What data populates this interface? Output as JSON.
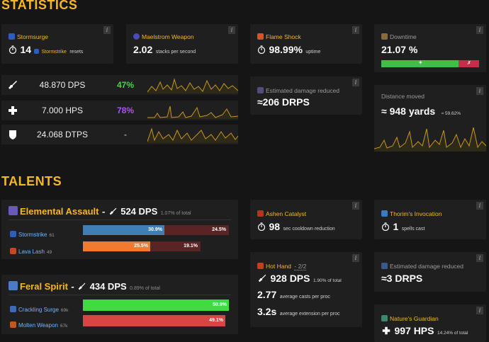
{
  "headings": {
    "statistics": "STATISTICS",
    "talents": "TALENTS"
  },
  "info_glyph": "i",
  "colors": {
    "accent": "#f5b722",
    "green": "#3fdc3f",
    "purple": "#a855f7",
    "blue_bar": "#3f7fb3",
    "orange_bar": "#f07b2e",
    "green_bar": "#3fdc3f",
    "red_bar": "#d94545",
    "dark_red": "#5a2424"
  },
  "cards": {
    "stormsurge": {
      "title": "Stormsurge",
      "icon": "stormsurge-icon",
      "value": "14",
      "link": "Stormstrike",
      "suffix": "resets"
    },
    "maelstrom": {
      "title": "Maelstrom Weapon",
      "icon": "maelstrom-icon",
      "value": "2.02",
      "suffix": "stacks per second"
    },
    "flameshock": {
      "title": "Flame Shock",
      "icon": "flame-shock-icon",
      "value": "98.99%",
      "suffix": "uptime"
    },
    "downtime": {
      "title": "Downtime",
      "icon": "downtime-icon",
      "value": "21.07 %",
      "active_fraction": 0.79
    },
    "dmg_reduced": {
      "title": "Estimated damage reduced",
      "value": "≈206 DRPS"
    },
    "distance": {
      "title": "Distance moved",
      "value": "≈ 948 yards",
      "suffix": "≈ 59.62%"
    }
  },
  "rows": [
    {
      "icon": "sword-icon",
      "value": "48.870 DPS",
      "pct": "47%",
      "pct_color": "#3fdc3f"
    },
    {
      "icon": "plus-icon",
      "value": "7.000 HPS",
      "pct": "78%",
      "pct_color": "#a855f7"
    },
    {
      "icon": "shield-icon",
      "value": "24.068 DTPS",
      "pct": "-",
      "pct_color": "#9a9a9a"
    }
  ],
  "talents": {
    "elemental_assault": {
      "name": "Elemental Assault",
      "sep": "-",
      "dps": "524 DPS",
      "share": "1.07% of total",
      "subs": [
        {
          "name": "Stormstrike",
          "num": "61",
          "left": "30.9%",
          "right": "24.5%",
          "left_frac": 0.56,
          "right_frac": 0.44
        },
        {
          "name": "Lava Lash",
          "num": "49",
          "left": "25.5%",
          "right": "19.1%",
          "left_frac": 0.57,
          "right_frac": 0.43
        }
      ]
    },
    "feral_spirit": {
      "name": "Feral Spirit",
      "sep": "-",
      "dps": "434 DPS",
      "share": "0.89% of total",
      "subs": [
        {
          "name": "Crackling Surge",
          "num": "69k",
          "label": "50.9%",
          "frac": 1.0
        },
        {
          "name": "Molten Weapon",
          "num": "67k",
          "label": "49.1%",
          "frac": 1.0
        }
      ]
    },
    "ashen": {
      "title": "Ashen Catalyst",
      "value": "98",
      "suffix": "sec cooldown reduction"
    },
    "thorim": {
      "title": "Thorim's Invocation",
      "value": "1",
      "suffix": "spells cast"
    },
    "hothand": {
      "title": "Hot Hand",
      "title_suffix": "- 2/2",
      "dps": "928 DPS",
      "share": "1.90% of total",
      "casts": "2.77",
      "casts_label": "average casts per proc",
      "ext": "3.2s",
      "ext_label": "average extension per proc"
    },
    "talent_dr": {
      "title": "Estimated damage reduced",
      "value": "≈3 DRPS"
    },
    "natures": {
      "title": "Nature's Guardian",
      "value": "997 HPS",
      "share": "14.24% of total"
    }
  }
}
